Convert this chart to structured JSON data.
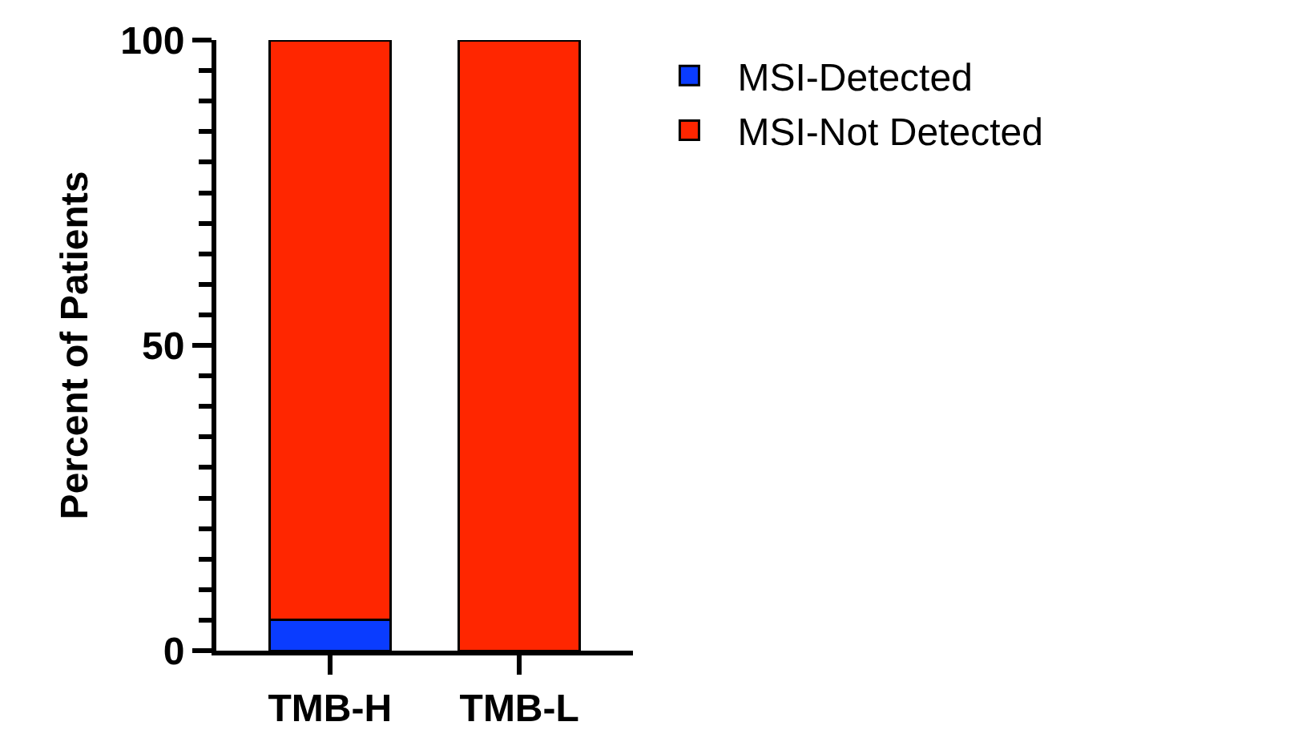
{
  "chart_data": {
    "type": "bar",
    "stacked": true,
    "categories": [
      "TMB-H",
      "TMB-L"
    ],
    "ylabel": "Percent of Patients",
    "series": [
      {
        "name": "MSI-Detected",
        "color": "#0a3cff",
        "values": [
          5,
          0
        ]
      },
      {
        "name": "MSI-Not Detected",
        "color": "#ff2600",
        "values": [
          95,
          100
        ]
      }
    ],
    "ylim": [
      0,
      100
    ],
    "yticks": [
      0,
      {
        "value": 5,
        "label": null
      },
      {
        "value": 10,
        "label": null
      },
      {
        "value": 15,
        "label": null
      },
      {
        "value": 20,
        "label": null
      },
      {
        "value": 25,
        "label": null
      },
      {
        "value": 30,
        "label": null
      },
      {
        "value": 35,
        "label": null
      },
      {
        "value": 40,
        "label": null
      },
      {
        "value": 45,
        "label": null
      },
      50,
      {
        "value": 55,
        "label": null
      },
      {
        "value": 60,
        "label": null
      },
      {
        "value": 65,
        "label": null
      },
      {
        "value": 70,
        "label": null
      },
      {
        "value": 75,
        "label": null
      },
      {
        "value": 80,
        "label": null
      },
      {
        "value": 85,
        "label": null
      },
      {
        "value": 90,
        "label": null
      },
      {
        "value": 95,
        "label": null
      },
      100
    ],
    "grid": false,
    "legend": "top right"
  }
}
